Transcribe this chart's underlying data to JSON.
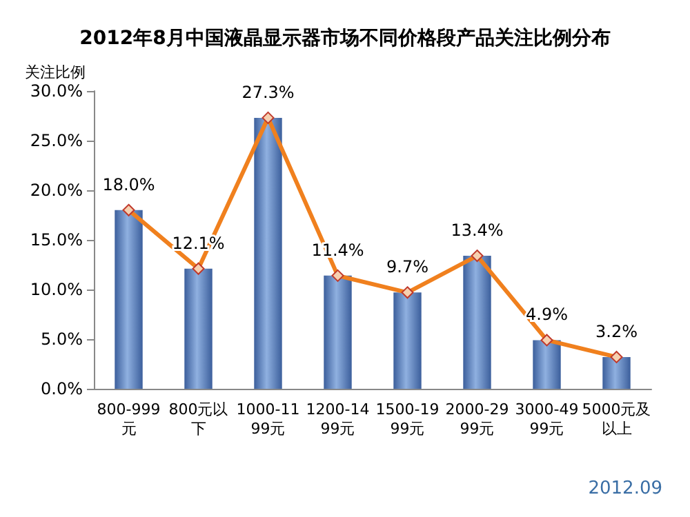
{
  "chart_data": {
    "type": "bar",
    "title": "2012年8月中国液晶显示器市场不同价格段产品关注比例分布",
    "ylabel": "关注比例",
    "categories": [
      "800-999元",
      "800元以下",
      "1000-1199元",
      "1200-1499元",
      "1500-1999元",
      "2000-2999元",
      "3000-4999元",
      "5000元及以上"
    ],
    "series": [
      {
        "color": "#3c5f9c",
        "values": [
          18.0,
          12.1,
          27.3,
          11.4,
          9.7,
          13.4,
          4.9,
          3.2
        ]
      },
      {
        "type": "line",
        "color": "#f0801e",
        "marker": "diamond",
        "values": [
          18.0,
          12.1,
          27.3,
          11.4,
          9.7,
          13.4,
          4.9,
          3.2
        ],
        "value_labels": [
          "18.0%",
          "12.1%",
          "27.3%",
          "11.4%",
          "9.7%",
          "13.4%",
          "4.9%",
          "3.2%"
        ]
      }
    ],
    "ylim": [
      0,
      30
    ],
    "yticks": [
      {
        "value": 0,
        "label": "0.0%"
      },
      {
        "value": 5,
        "label": "5.0%"
      },
      {
        "value": 10,
        "label": "10.0%"
      },
      {
        "value": 15,
        "label": "15.0%"
      },
      {
        "value": 20,
        "label": "20.0%"
      },
      {
        "value": 25,
        "label": "25.0%"
      },
      {
        "value": 30,
        "label": "30.0%"
      }
    ],
    "grid": false,
    "annotations": [
      "2012.09"
    ]
  }
}
